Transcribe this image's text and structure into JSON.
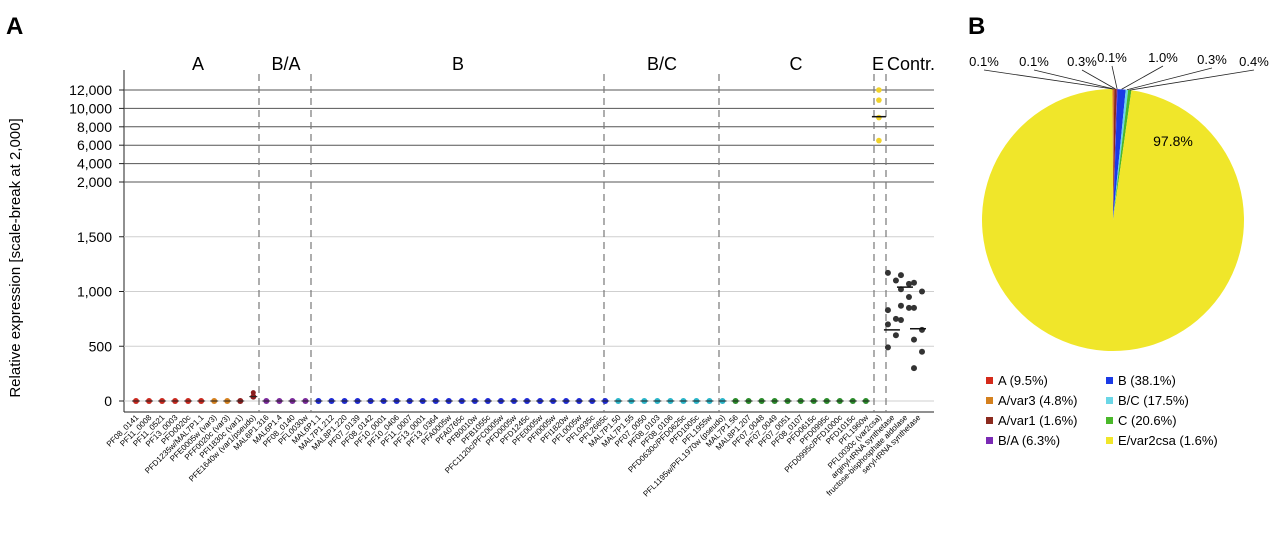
{
  "panel_a": {
    "letter": "A",
    "ylabel": "Relative expression [scale-break at 2,000]",
    "group_labels": [
      "A",
      "B/A",
      "B",
      "B/C",
      "C",
      "E",
      "Contr."
    ],
    "lower_ticks": [
      "0",
      "500",
      "1,000",
      "1,500"
    ],
    "upper_ticks": [
      "2,000",
      "4,000",
      "6,000",
      "8,000",
      "10,000",
      "12,000"
    ],
    "genes": [
      "PF08_0141",
      "PF11_0008",
      "PF11_0521",
      "PF13_0003",
      "PFD0020c",
      "PFD1235w/MAL7P1.1",
      "PFE0005w (var3)",
      "PFF0020c (var3)",
      "PFI1830c (var1)",
      "PFE1640w (var1/pseudo)",
      "MAL6P1.316",
      "MAL6P1.4",
      "PF08_0140",
      "PFL0030w",
      "MAL6P1.1",
      "MAL7P1.212",
      "MAL8P1.220",
      "PF07_0139",
      "PF08_0142",
      "PF10_0001",
      "PF10_0406",
      "PF11_0007",
      "PF13_0001",
      "PF13_0364",
      "PFA0005w",
      "PFA0765c",
      "PFB0010w",
      "PFB1055c",
      "PFC1120c/PFC0005w",
      "PFD0005w",
      "PFD1245c",
      "PFE0005w",
      "PFI0005w",
      "PFI1820w",
      "PFL0005w",
      "PFL0935c",
      "PFL2665c",
      "MAL7P1.50",
      "MAL7P1.55",
      "PF07_0050",
      "PF08_0103",
      "PF08_0106",
      "PFD0630c/PFD0625c",
      "PFD1005c",
      "PFL1955w",
      "PFL1195w/PFL1970w (pseudo)",
      "MAL7P1.56",
      "MAL8P1.207",
      "PF07_0048",
      "PF07_0049",
      "PF07_0051",
      "PF08_0107",
      "PFD0615c",
      "PFD0995c",
      "PFD0995c/PFD1000c",
      "PFD1015c",
      "PFL1960w",
      "PFL0030c (var2csa)",
      "arginyl-tRNA synthetase",
      "fructose-bisphosphate aldolase",
      "seryl-tRNA synthetase"
    ],
    "group_colors": {
      "A": "#c8281e",
      "A/var3": "#d4801e",
      "A/var1": "#8b1e1e",
      "B/A": "#7a2a9a",
      "B": "#1e2ad2",
      "B/C": "#2ab4c8",
      "C": "#2a8a2a",
      "E/var2csa": "#f0d22a",
      "Contr.": "#333333"
    }
  },
  "panel_b": {
    "letter": "B",
    "center_label": "97.8%",
    "slice_labels": [
      "0.1%",
      "0.1%",
      "0.3%",
      "0.1%",
      "1.0%",
      "0.3%",
      "0.4%"
    ],
    "legend": [
      {
        "label": "A (9.5%)",
        "color": "#d42a1a"
      },
      {
        "label": "B (38.1%)",
        "color": "#1a3ae6"
      },
      {
        "label": "A/var3 (4.8%)",
        "color": "#d4801e"
      },
      {
        "label": "B/C (17.5%)",
        "color": "#6ad6e6"
      },
      {
        "label": "A/var1 (1.6%)",
        "color": "#8b2a1e"
      },
      {
        "label": "C (20.6%)",
        "color": "#4ab82a"
      },
      {
        "label": "B/A (6.3%)",
        "color": "#7a2ab4"
      },
      {
        "label": "E/var2csa (1.6%)",
        "color": "#f0e62a"
      }
    ]
  },
  "chart_data": [
    {
      "type": "scatter",
      "title": "A",
      "ylabel": "Relative expression [scale-break at 2,000]",
      "y_scale_break": 2000,
      "ylim_lower": [
        0,
        2000
      ],
      "ylim_upper": [
        2000,
        12000
      ],
      "groups": [
        {
          "name": "A",
          "genes": [
            "PF08_0141",
            "PF11_0008",
            "PF11_0521",
            "PF13_0003",
            "PFD0020c",
            "PFD1235w/MAL7P1.1"
          ],
          "median": [
            0,
            0,
            0,
            0,
            0,
            0
          ]
        },
        {
          "name": "A",
          "subgroup": "A/var3",
          "genes": [
            "PFE0005w (var3)",
            "PFF0020c (var3)"
          ],
          "median": [
            0,
            0
          ]
        },
        {
          "name": "A",
          "subgroup": "A/var1",
          "genes": [
            "PFI1830c (var1)",
            "PFE1640w (var1/pseudo)"
          ],
          "median": [
            0,
            40
          ]
        },
        {
          "name": "B/A",
          "genes": [
            "MAL6P1.316",
            "MAL6P1.4",
            "PF08_0140",
            "PFL0030w"
          ],
          "median": [
            0,
            0,
            0,
            0
          ]
        },
        {
          "name": "B",
          "genes": [
            "MAL6P1.1",
            "MAL7P1.212",
            "MAL8P1.220",
            "PF07_0139",
            "PF08_0142",
            "PF10_0001",
            "PF10_0406",
            "PF11_0007",
            "PF13_0001",
            "PF13_0364",
            "PFA0005w",
            "PFA0765c",
            "PFB0010w",
            "PFB1055c",
            "PFC1120c/PFC0005w",
            "PFD0005w",
            "PFD1245c",
            "PFE0005w",
            "PFI0005w",
            "PFI1820w",
            "PFL0005w",
            "PFL0935c",
            "PFL2665c"
          ],
          "median": [
            0,
            0,
            0,
            0,
            0,
            0,
            0,
            0,
            0,
            0,
            0,
            0,
            0,
            0,
            0,
            0,
            0,
            0,
            0,
            0,
            0,
            0,
            0
          ]
        },
        {
          "name": "B/C",
          "genes": [
            "MAL7P1.50",
            "MAL7P1.55",
            "PF07_0050",
            "PF08_0103",
            "PF08_0106",
            "PFD0630c/PFD0625c",
            "PFD1005c",
            "PFL1955w",
            "PFL1195w/PFL1970w (pseudo)"
          ],
          "median": [
            0,
            0,
            0,
            0,
            0,
            0,
            0,
            0,
            0
          ]
        },
        {
          "name": "C",
          "genes": [
            "MAL7P1.56",
            "MAL8P1.207",
            "PF07_0048",
            "PF07_0049",
            "PF07_0051",
            "PF08_0107",
            "PFD0615c",
            "PFD0995c",
            "PFD0995c/PFD1000c",
            "PFD1015c",
            "PFL1960w"
          ],
          "median": [
            0,
            0,
            0,
            0,
            0,
            0,
            0,
            0,
            0,
            0,
            0
          ]
        },
        {
          "name": "E",
          "genes": [
            "PFL0030c (var2csa)"
          ],
          "points": [
            12000,
            10900,
            9000,
            6500
          ],
          "median": [
            9100
          ]
        },
        {
          "name": "Contr.",
          "genes": [
            "arginyl-tRNA synthetase",
            "fructose-bisphosphate aldolase",
            "seryl-tRNA synthetase"
          ],
          "points": [
            [
              1170,
              1100,
              830,
              750,
              700,
              600,
              490
            ],
            [
              1150,
              1070,
              1020,
              950,
              870,
              850,
              740
            ],
            [
              1080,
              1000,
              850,
              650,
              560,
              450,
              300
            ]
          ],
          "median": [
            650,
            1040,
            660
          ]
        }
      ]
    },
    {
      "type": "pie",
      "title": "B",
      "slices": [
        {
          "label": "E/var2csa (1.6%)",
          "value": 97.8,
          "color": "#f0e62a"
        },
        {
          "label": "A (9.5%)",
          "value": 0.1,
          "color": "#d42a1a"
        },
        {
          "label": "A/var3 (4.8%)",
          "value": 0.1,
          "color": "#d4801e"
        },
        {
          "label": "A/var1 (1.6%)",
          "value": 0.3,
          "color": "#8b2a1e"
        },
        {
          "label": "B/A (6.3%)",
          "value": 0.1,
          "color": "#7a2ab4"
        },
        {
          "label": "B (38.1%)",
          "value": 1.0,
          "color": "#1a3ae6"
        },
        {
          "label": "B/C (17.5%)",
          "value": 0.3,
          "color": "#6ad6e6"
        },
        {
          "label": "C (20.6%)",
          "value": 0.4,
          "color": "#4ab82a"
        }
      ]
    }
  ]
}
